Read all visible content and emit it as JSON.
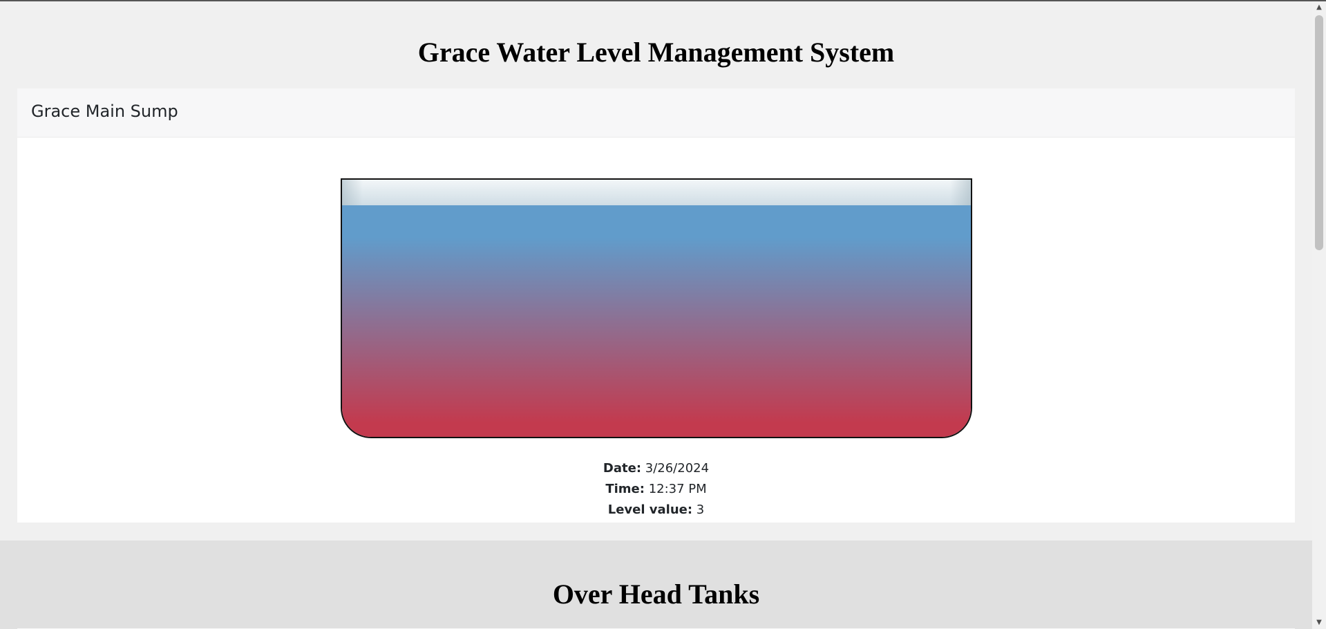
{
  "page": {
    "title": "Grace Water Level Management System"
  },
  "sump": {
    "name": "Grace Main Sump",
    "level_fraction": 0.9,
    "fill_colors": {
      "top": "#619ccb",
      "bottom": "#c33a4e"
    },
    "date_label": "Date:",
    "date": "3/26/2024",
    "time_label": "Time:",
    "time": "12:37 PM",
    "level_label": "Level value:",
    "level": "3"
  },
  "overhead": {
    "title": "Over Head Tanks"
  },
  "icons": {
    "scroll_up": "triangle-up-icon",
    "scroll_down": "triangle-down-icon"
  }
}
